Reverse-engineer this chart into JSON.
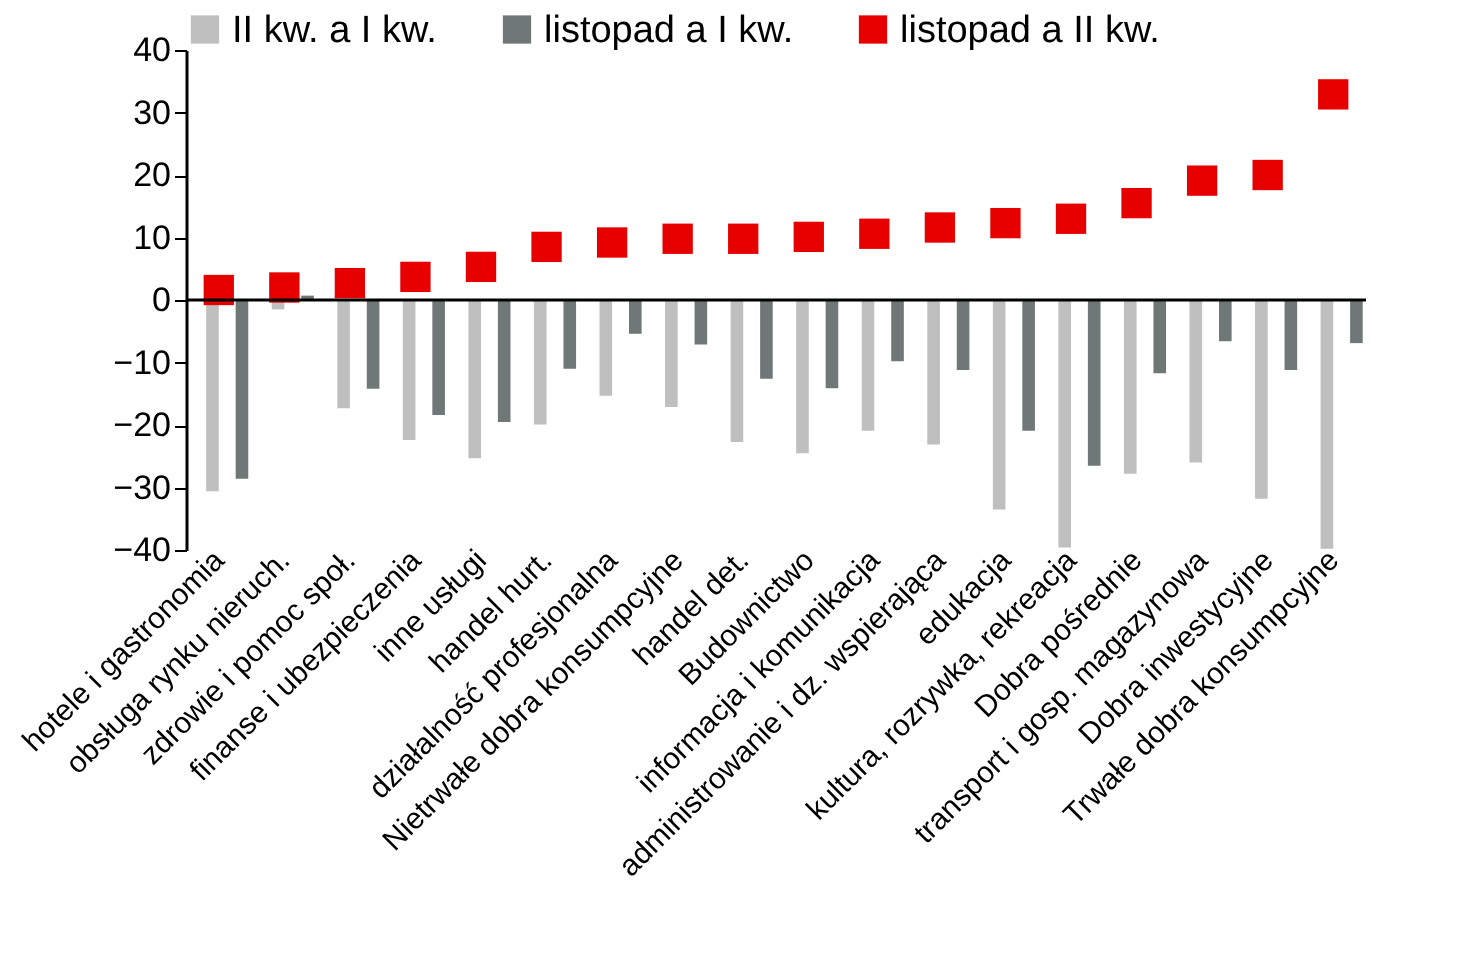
{
  "chart_data": {
    "type": "bar",
    "categories": [
      "hotele i gastronomia",
      "obsługa rynku nieruch.",
      "zdrowie i pomoc społ.",
      "finanse i ubezpieczenia",
      "inne usługi",
      "handel hurt.",
      "działalność profesjonalna",
      "Nietrwałe dobra konsumpcyjne",
      "handel det.",
      "Budownictwo",
      "informacja i komunikacja",
      "administrowanie i dz. wspierająca",
      "edukacja",
      "kultura, rozrywka, rekreacja",
      "Dobra pośrednie",
      "transport i gosp. magazynowa",
      "Dobra inwestycyjne",
      "Trwałe dobra konsumpcyjne"
    ],
    "series": [
      {
        "name": "II kw. a I kw.",
        "color": "#bfbfbf",
        "values": [
          -30.6,
          -1.5,
          -17.3,
          -22.4,
          -25.3,
          -19.9,
          -15.3,
          -17.1,
          -22.7,
          -24.5,
          -20.9,
          -23.1,
          -33.5,
          -39.6,
          -27.8,
          -26,
          -31.8,
          -39.8
        ]
      },
      {
        "name": "listopad a I kw.",
        "color": "#6f7777",
        "values": [
          -28.6,
          0.7,
          -14.2,
          -18.4,
          -19.5,
          -11,
          -5.4,
          -7.1,
          -12.6,
          -14.1,
          -9.8,
          -11.2,
          -20.9,
          -26.5,
          -11.7,
          -6.6,
          -11.2,
          -6.9
        ]
      },
      {
        "name": "listopad a II kw.",
        "color": "#e60000",
        "type": "scatter",
        "values": [
          1.6,
          2,
          2.7,
          3.7,
          5.3,
          8.5,
          9.2,
          9.8,
          9.8,
          10.1,
          10.6,
          11.6,
          12.3,
          13,
          15.5,
          19.1,
          20,
          32.9
        ]
      }
    ],
    "ylim": [
      -40,
      40
    ],
    "yticks": [
      -40,
      -30,
      -20,
      -10,
      0,
      10,
      20,
      30,
      40
    ],
    "ref_lines": [
      {
        "axis": "y",
        "value": 0,
        "color": "#000000"
      }
    ],
    "grid": false,
    "legend": "top",
    "marker": "square"
  }
}
